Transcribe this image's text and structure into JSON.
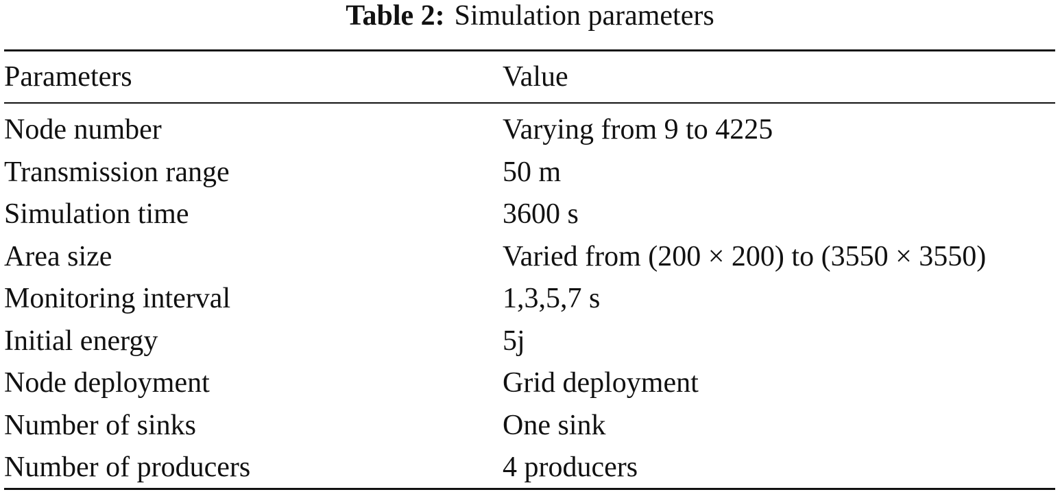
{
  "caption": {
    "label": "Table 2:",
    "text": "Simulation parameters"
  },
  "table": {
    "headers": [
      "Parameters",
      "Value"
    ],
    "rows": [
      [
        "Node number",
        "Varying from 9 to 4225"
      ],
      [
        "Transmission range",
        "50 m"
      ],
      [
        "Simulation time",
        "3600 s"
      ],
      [
        "Area size",
        "Varied from (200 × 200) to (3550 × 3550)"
      ],
      [
        "Monitoring interval",
        "1,3,5,7 s"
      ],
      [
        "Initial energy",
        "5j"
      ],
      [
        "Node deployment",
        "Grid deployment"
      ],
      [
        "Number of sinks",
        "One sink"
      ],
      [
        "Number of producers",
        "4 producers"
      ]
    ]
  }
}
